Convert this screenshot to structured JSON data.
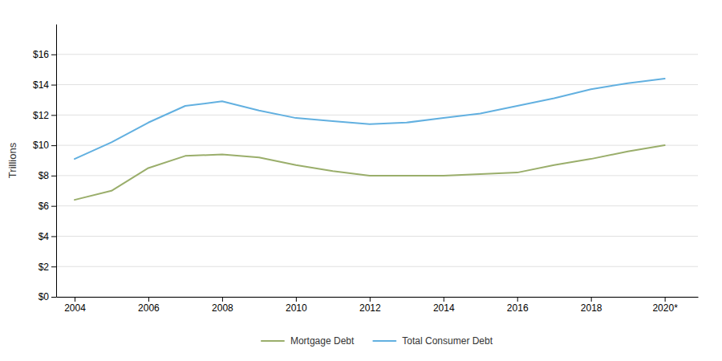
{
  "chart_data": {
    "type": "line",
    "ylabel": "Trillions",
    "x": [
      2004,
      2005,
      2006,
      2007,
      2008,
      2009,
      2010,
      2011,
      2012,
      2013,
      2014,
      2015,
      2016,
      2017,
      2018,
      2019,
      2020
    ],
    "series": [
      {
        "name": "Mortgage Debt",
        "color": "#9aae6b",
        "values": [
          6.4,
          7.0,
          8.5,
          9.3,
          9.4,
          9.2,
          8.7,
          8.3,
          8.0,
          8.0,
          8.0,
          8.1,
          8.2,
          8.7,
          9.1,
          9.6,
          10.0
        ]
      },
      {
        "name": "Total Consumer Debt",
        "color": "#62b0e0",
        "values": [
          9.1,
          10.2,
          11.5,
          12.6,
          12.9,
          12.3,
          11.8,
          11.6,
          11.4,
          11.5,
          11.8,
          12.1,
          12.6,
          13.1,
          13.7,
          14.1,
          14.4
        ]
      }
    ],
    "xlim": [
      2003.5,
      2020.9
    ],
    "xticks": [
      2004,
      2006,
      2008,
      2010,
      2012,
      2014,
      2016,
      2018,
      {
        "value": 2020,
        "label": "2020*"
      }
    ],
    "ylim": [
      0,
      18
    ],
    "yticks": [
      {
        "value": 0,
        "label": "$0"
      },
      {
        "value": 2,
        "label": "$2"
      },
      {
        "value": 4,
        "label": "$4"
      },
      {
        "value": 6,
        "label": "$6"
      },
      {
        "value": 8,
        "label": "$8"
      },
      {
        "value": 10,
        "label": "$10"
      },
      {
        "value": 12,
        "label": "$12"
      },
      {
        "value": 14,
        "label": "$14"
      },
      {
        "value": 16,
        "label": "$16"
      }
    ],
    "grid": true,
    "legend": "bottom"
  }
}
